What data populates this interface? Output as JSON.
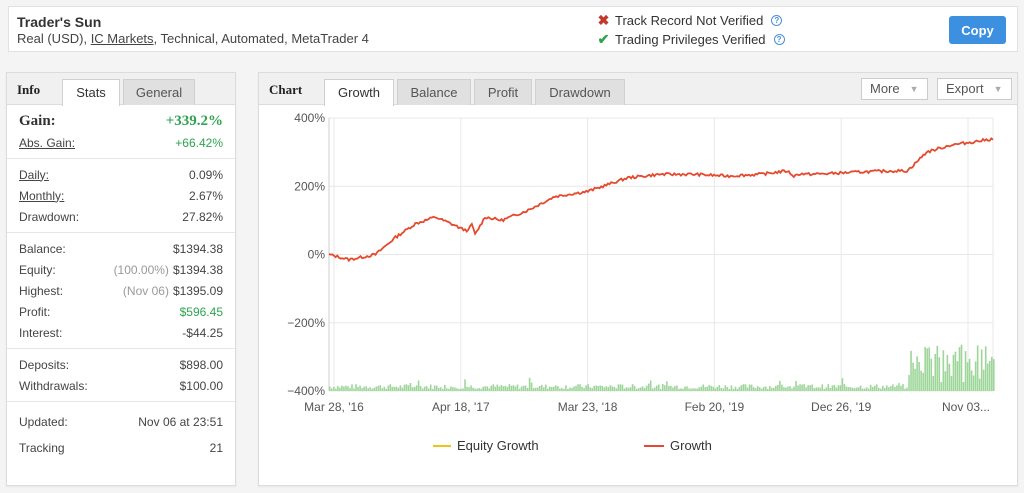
{
  "header": {
    "title": "Trader's Sun",
    "sub_prefix": "Real (USD), ",
    "broker": "IC Markets",
    "sub_suffix": ", Technical, Automated, MetaTrader 4",
    "track_record": "Track Record Not Verified",
    "privileges": "Trading Privileges Verified",
    "copy_label": "Copy",
    "colors": {
      "accent": "#3d8fe0",
      "not_verified": "#c0392b",
      "verified": "#2ea44f"
    }
  },
  "info": {
    "tab_title": "Info",
    "tabs": [
      "Stats",
      "General"
    ],
    "gain": {
      "label": "Gain:",
      "value": "+339.2%"
    },
    "abs_gain": {
      "label": "Abs. Gain:",
      "value": "+66.42%"
    },
    "daily": {
      "label": "Daily:",
      "value": "0.09%"
    },
    "monthly": {
      "label": "Monthly:",
      "value": "2.67%"
    },
    "drawdown": {
      "label": "Drawdown:",
      "value": "27.82%"
    },
    "balance": {
      "label": "Balance:",
      "value": "$1394.38"
    },
    "equity": {
      "label": "Equity:",
      "note": "(100.00%)",
      "value": "$1394.38"
    },
    "highest": {
      "label": "Highest:",
      "note": "(Nov 06)",
      "value": "$1395.09"
    },
    "profit": {
      "label": "Profit:",
      "value": "$596.45"
    },
    "interest": {
      "label": "Interest:",
      "value": "-$44.25"
    },
    "deposits": {
      "label": "Deposits:",
      "value": "$898.00"
    },
    "withdrawals": {
      "label": "Withdrawals:",
      "value": "$100.00"
    },
    "updated": {
      "label": "Updated:",
      "value": "Nov 06 at 23:51"
    },
    "tracking": {
      "label": "Tracking",
      "value": "21"
    }
  },
  "chart_panel": {
    "tab_title": "Chart",
    "tabs": [
      "Growth",
      "Balance",
      "Profit",
      "Drawdown"
    ],
    "more_label": "More",
    "export_label": "Export"
  },
  "chart_data": {
    "type": "line",
    "title": "",
    "xlabel": "",
    "ylabel": "",
    "y_tick_labels": [
      "400%",
      "200%",
      "0%",
      "−200%",
      "−400%"
    ],
    "y_ticks": [
      400,
      200,
      0,
      -200,
      -400
    ],
    "ylim": [
      -400,
      400
    ],
    "x_tick_labels": [
      "Mar 28, '16",
      "Apr 18, '17",
      "Mar 23, '18",
      "Feb 20, '19",
      "Dec 26, '19",
      "Nov 03..."
    ],
    "grid": true,
    "legend": "bottom-center",
    "series": [
      {
        "name": "Equity Growth",
        "color": "#f0c419",
        "values": []
      },
      {
        "name": "Growth",
        "color": "#e64a2e",
        "x_fraction": [
          0,
          0.03,
          0.07,
          0.1,
          0.13,
          0.16,
          0.19,
          0.2,
          0.21,
          0.215,
          0.22,
          0.235,
          0.26,
          0.3,
          0.34,
          0.39,
          0.45,
          0.5,
          0.55,
          0.6,
          0.65,
          0.69,
          0.7,
          0.71,
          0.72,
          0.75,
          0.8,
          0.85,
          0.87,
          0.875,
          0.9,
          0.935,
          0.97,
          1.0
        ],
        "values": [
          0,
          -15,
          0,
          50,
          90,
          110,
          85,
          75,
          70,
          90,
          58,
          110,
          100,
          130,
          170,
          185,
          225,
          235,
          235,
          230,
          235,
          245,
          230,
          237,
          235,
          237,
          242,
          245,
          245,
          252,
          300,
          320,
          330,
          339
        ]
      }
    ],
    "volume_bars": {
      "color": "#9ed69a",
      "baseline": -400
    }
  }
}
